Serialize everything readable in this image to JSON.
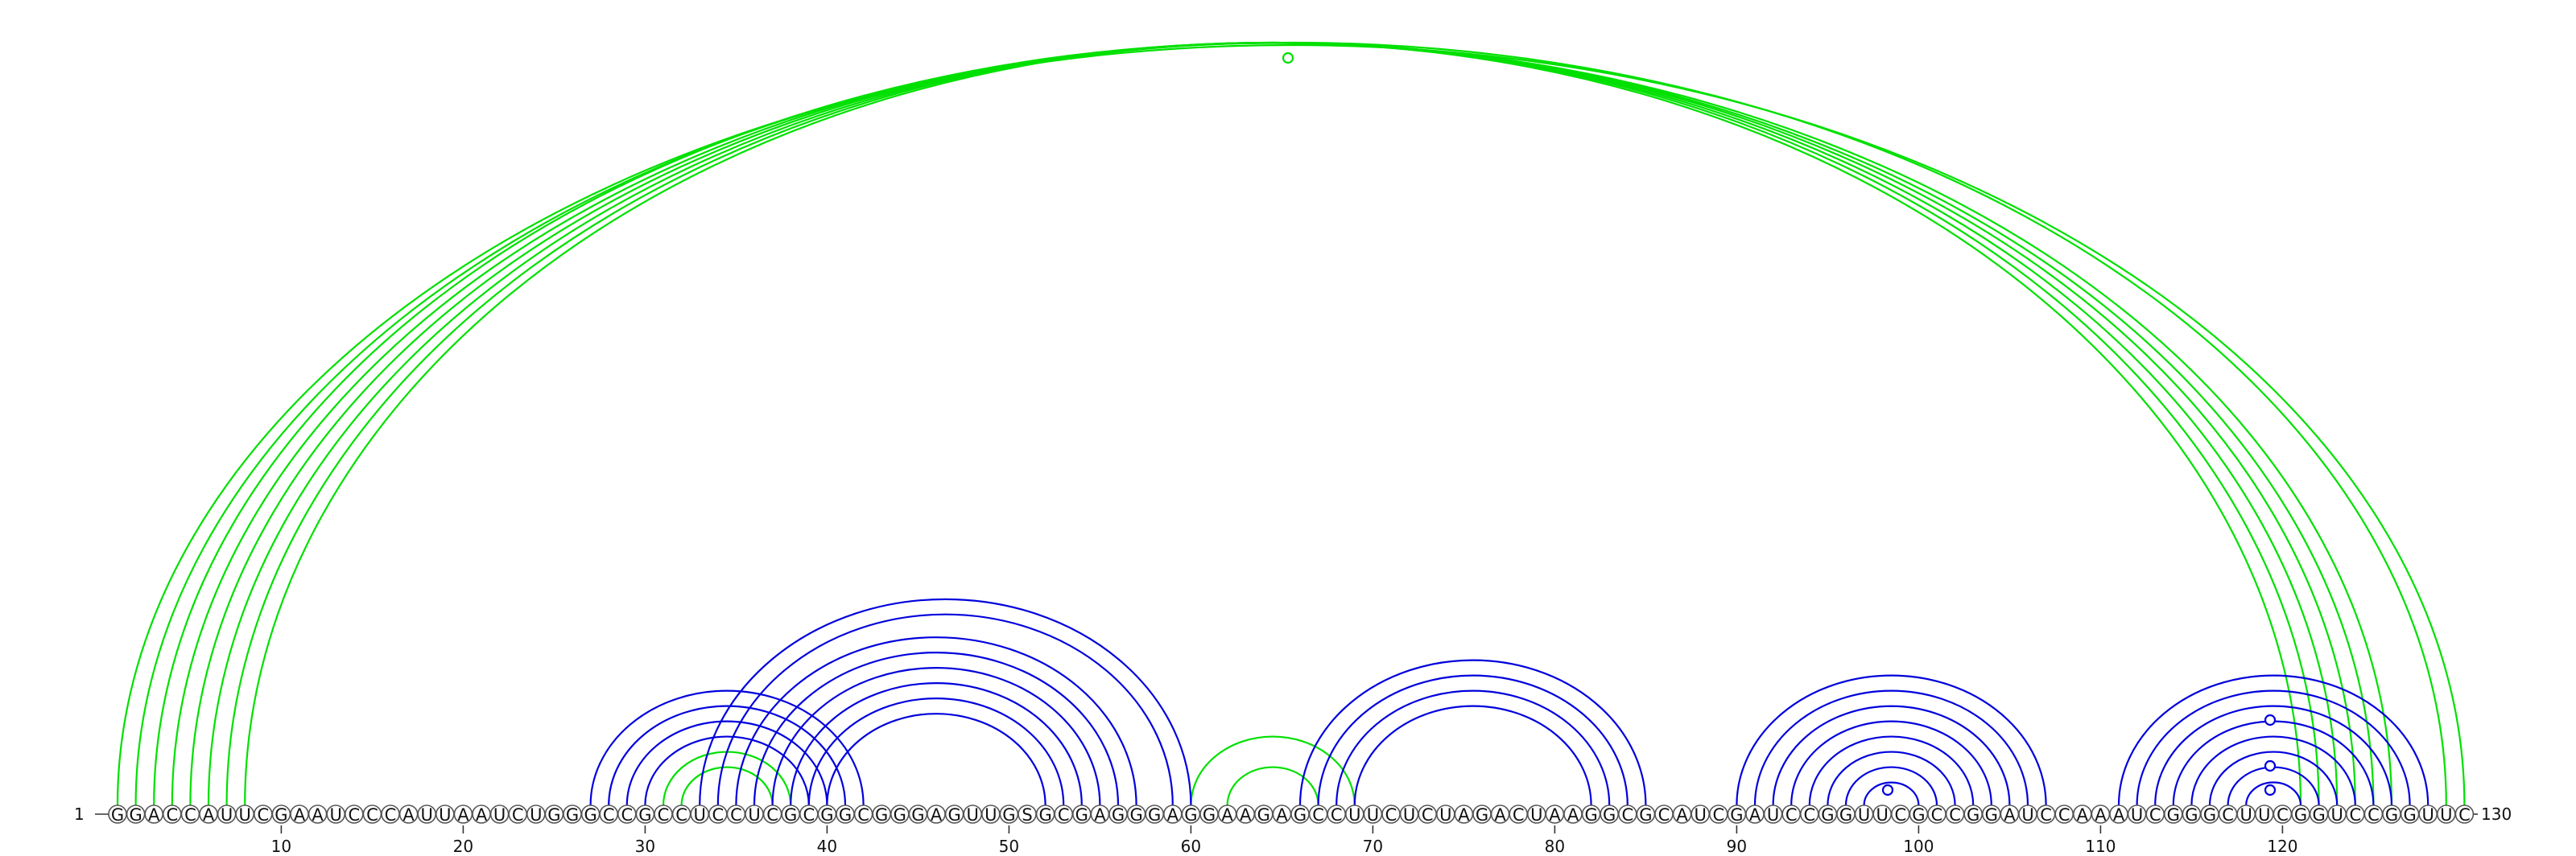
{
  "sequence": "GGACCAUUCGAAUCCCAUUAAUCUGGGCCGCCUCCUCGCGGCGGGAGUUGSGCGAGGGAGGAAGAGCCUUCUCUAGACUAAGGCGCAUCGAUCCGGUUCGCCGGAUCCAAAUCGGGCUUCGGUCCGGUUC",
  "start_label": "1",
  "end_label": "130",
  "position_labels": [
    "10",
    "20",
    "30",
    "40",
    "50",
    "60",
    "70",
    "80",
    "90",
    "100",
    "110",
    "120"
  ],
  "colors": {
    "blue": "#0000dd",
    "green": "#00e000"
  },
  "arcs": [
    {
      "i": 1,
      "j": 130,
      "color": "green"
    },
    {
      "i": 2,
      "j": 129,
      "color": "green"
    },
    {
      "i": 3,
      "j": 126,
      "color": "green"
    },
    {
      "i": 4,
      "j": 125,
      "color": "green"
    },
    {
      "i": 5,
      "j": 124,
      "color": "green"
    },
    {
      "i": 6,
      "j": 123,
      "color": "green"
    },
    {
      "i": 7,
      "j": 122,
      "color": "green"
    },
    {
      "i": 8,
      "j": 121,
      "color": "green"
    },
    {
      "i": 31,
      "j": 38,
      "color": "green"
    },
    {
      "i": 32,
      "j": 37,
      "color": "green"
    },
    {
      "i": 60,
      "j": 69,
      "color": "green"
    },
    {
      "i": 62,
      "j": 67,
      "color": "green"
    },
    {
      "i": 27,
      "j": 42,
      "color": "blue"
    },
    {
      "i": 28,
      "j": 41,
      "color": "blue"
    },
    {
      "i": 29,
      "j": 40,
      "color": "blue"
    },
    {
      "i": 30,
      "j": 39,
      "color": "blue"
    },
    {
      "i": 33,
      "j": 60,
      "color": "blue"
    },
    {
      "i": 34,
      "j": 59,
      "color": "blue"
    },
    {
      "i": 35,
      "j": 57,
      "color": "blue"
    },
    {
      "i": 36,
      "j": 56,
      "color": "blue"
    },
    {
      "i": 37,
      "j": 55,
      "color": "blue"
    },
    {
      "i": 38,
      "j": 54,
      "color": "blue"
    },
    {
      "i": 39,
      "j": 53,
      "color": "blue"
    },
    {
      "i": 40,
      "j": 52,
      "color": "blue"
    },
    {
      "i": 66,
      "j": 85,
      "color": "blue"
    },
    {
      "i": 67,
      "j": 84,
      "color": "blue"
    },
    {
      "i": 68,
      "j": 83,
      "color": "blue"
    },
    {
      "i": 69,
      "j": 82,
      "color": "blue"
    },
    {
      "i": 90,
      "j": 107,
      "color": "blue"
    },
    {
      "i": 91,
      "j": 106,
      "color": "blue"
    },
    {
      "i": 92,
      "j": 105,
      "color": "blue"
    },
    {
      "i": 93,
      "j": 104,
      "color": "blue"
    },
    {
      "i": 94,
      "j": 103,
      "color": "blue"
    },
    {
      "i": 95,
      "j": 102,
      "color": "blue"
    },
    {
      "i": 96,
      "j": 101,
      "color": "blue"
    },
    {
      "i": 97,
      "j": 100,
      "color": "blue"
    },
    {
      "i": 111,
      "j": 128,
      "color": "blue"
    },
    {
      "i": 112,
      "j": 127,
      "color": "blue"
    },
    {
      "i": 113,
      "j": 126,
      "color": "blue"
    },
    {
      "i": 114,
      "j": 125,
      "color": "blue"
    },
    {
      "i": 115,
      "j": 124,
      "color": "blue"
    },
    {
      "i": 116,
      "j": 123,
      "color": "blue"
    },
    {
      "i": 117,
      "j": 122,
      "color": "blue"
    },
    {
      "i": 118,
      "j": 121,
      "color": "blue"
    }
  ]
}
